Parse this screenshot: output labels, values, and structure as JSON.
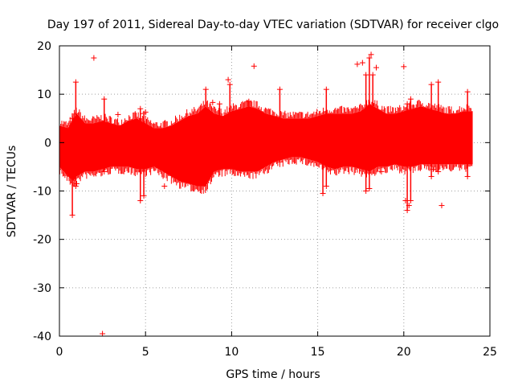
{
  "chart_data": {
    "type": "scatter",
    "title": "Day 197 of 2011, Sidereal Day-to-day VTEC variation (SDTVAR) for receiver clgo",
    "xlabel": "GPS time / hours",
    "ylabel": "SDTVAR / TECUs",
    "xlim": [
      0,
      25
    ],
    "ylim": [
      -40,
      20
    ],
    "xticks": [
      "0",
      "5",
      "10",
      "15",
      "20",
      "25"
    ],
    "xtick_values": [
      0,
      5,
      10,
      15,
      20,
      25
    ],
    "yticks": [
      "20",
      "10",
      "0",
      "-10",
      "-20",
      "-30",
      "-40"
    ],
    "ytick_values": [
      20,
      10,
      0,
      -10,
      -20,
      -30,
      -40
    ],
    "grid": true,
    "marker": "+",
    "color": "#ff0000",
    "band": {
      "description": "dense point cloud envelope (upper/lower)",
      "x": [
        0.0,
        0.5,
        0.8,
        1.0,
        1.5,
        2.0,
        2.5,
        3.0,
        3.5,
        4.0,
        4.5,
        5.0,
        5.5,
        6.0,
        6.5,
        7.0,
        7.5,
        8.0,
        8.5,
        9.0,
        9.5,
        10.0,
        10.5,
        11.0,
        11.5,
        12.0,
        12.5,
        13.0,
        13.5,
        14.0,
        14.5,
        15.0,
        15.5,
        16.0,
        16.5,
        17.0,
        17.5,
        18.0,
        18.5,
        19.0,
        19.5,
        20.0,
        20.5,
        21.0,
        21.5,
        22.0,
        22.5,
        23.0,
        23.5,
        24.0
      ],
      "upper": [
        3.5,
        3.0,
        5.0,
        6.0,
        4.0,
        4.0,
        4.5,
        4.0,
        3.5,
        4.5,
        5.0,
        4.0,
        3.0,
        3.0,
        3.5,
        4.5,
        5.5,
        6.0,
        7.5,
        6.0,
        5.5,
        6.5,
        7.0,
        7.5,
        7.0,
        6.0,
        5.5,
        5.0,
        5.0,
        5.0,
        5.0,
        5.5,
        6.0,
        6.0,
        6.0,
        6.0,
        6.5,
        8.0,
        7.0,
        6.0,
        6.0,
        6.5,
        7.0,
        7.5,
        7.0,
        6.5,
        6.0,
        6.0,
        6.5,
        6.5
      ],
      "lower": [
        -5.0,
        -7.0,
        -8.0,
        -7.0,
        -6.0,
        -6.0,
        -5.5,
        -5.0,
        -5.0,
        -5.0,
        -5.5,
        -5.5,
        -5.0,
        -6.0,
        -7.0,
        -8.0,
        -8.5,
        -9.0,
        -9.0,
        -6.0,
        -5.5,
        -5.5,
        -6.0,
        -6.0,
        -6.0,
        -5.0,
        -4.0,
        -3.5,
        -3.0,
        -3.0,
        -3.5,
        -4.0,
        -5.0,
        -5.5,
        -5.0,
        -5.0,
        -5.5,
        -6.0,
        -5.0,
        -5.0,
        -4.5,
        -5.0,
        -5.0,
        -4.5,
        -4.5,
        -4.5,
        -4.5,
        -4.5,
        -4.5,
        -4.5
      ]
    },
    "spikes": [
      {
        "x": 0.75,
        "lo": -15,
        "hi": 5
      },
      {
        "x": 0.95,
        "lo": -9,
        "hi": 12.5
      },
      {
        "x": 2.6,
        "lo": -6,
        "hi": 9
      },
      {
        "x": 4.7,
        "lo": -12,
        "hi": 7
      },
      {
        "x": 4.9,
        "lo": -11,
        "hi": 6
      },
      {
        "x": 8.5,
        "lo": -6,
        "hi": 11
      },
      {
        "x": 9.3,
        "lo": -5,
        "hi": 8
      },
      {
        "x": 9.9,
        "lo": -4,
        "hi": 12
      },
      {
        "x": 11.0,
        "lo": -5,
        "hi": 8.5
      },
      {
        "x": 12.8,
        "lo": -4,
        "hi": 11
      },
      {
        "x": 15.3,
        "lo": -10.5,
        "hi": 5
      },
      {
        "x": 15.5,
        "lo": -9,
        "hi": 11
      },
      {
        "x": 17.8,
        "lo": -10,
        "hi": 14
      },
      {
        "x": 18.0,
        "lo": -9.5,
        "hi": 17.5
      },
      {
        "x": 18.2,
        "lo": -5,
        "hi": 14
      },
      {
        "x": 20.2,
        "lo": -14,
        "hi": 8
      },
      {
        "x": 20.4,
        "lo": -12,
        "hi": 9
      },
      {
        "x": 21.6,
        "lo": -7,
        "hi": 12
      },
      {
        "x": 22.0,
        "lo": -6,
        "hi": 12.5
      },
      {
        "x": 23.7,
        "lo": -7,
        "hi": 10.5
      }
    ],
    "outliers": [
      {
        "x": 2.0,
        "y": 17.5
      },
      {
        "x": 2.5,
        "y": -39.5
      },
      {
        "x": 3.4,
        "y": 5.8
      },
      {
        "x": 5.0,
        "y": 6.3
      },
      {
        "x": 6.1,
        "y": -9.0
      },
      {
        "x": 8.9,
        "y": 8.3
      },
      {
        "x": 9.8,
        "y": 13.0
      },
      {
        "x": 11.3,
        "y": 15.8
      },
      {
        "x": 17.3,
        "y": 16.2
      },
      {
        "x": 17.6,
        "y": 16.5
      },
      {
        "x": 18.1,
        "y": 18.2
      },
      {
        "x": 18.4,
        "y": 15.5
      },
      {
        "x": 18.7,
        "y": -6.0
      },
      {
        "x": 20.0,
        "y": 15.7
      },
      {
        "x": 20.1,
        "y": -12.0
      },
      {
        "x": 20.3,
        "y": -13.0
      },
      {
        "x": 21.7,
        "y": -5.5
      },
      {
        "x": 22.2,
        "y": -13.0
      },
      {
        "x": 22.8,
        "y": 5.5
      },
      {
        "x": 1.0,
        "y": -8.5
      }
    ]
  }
}
